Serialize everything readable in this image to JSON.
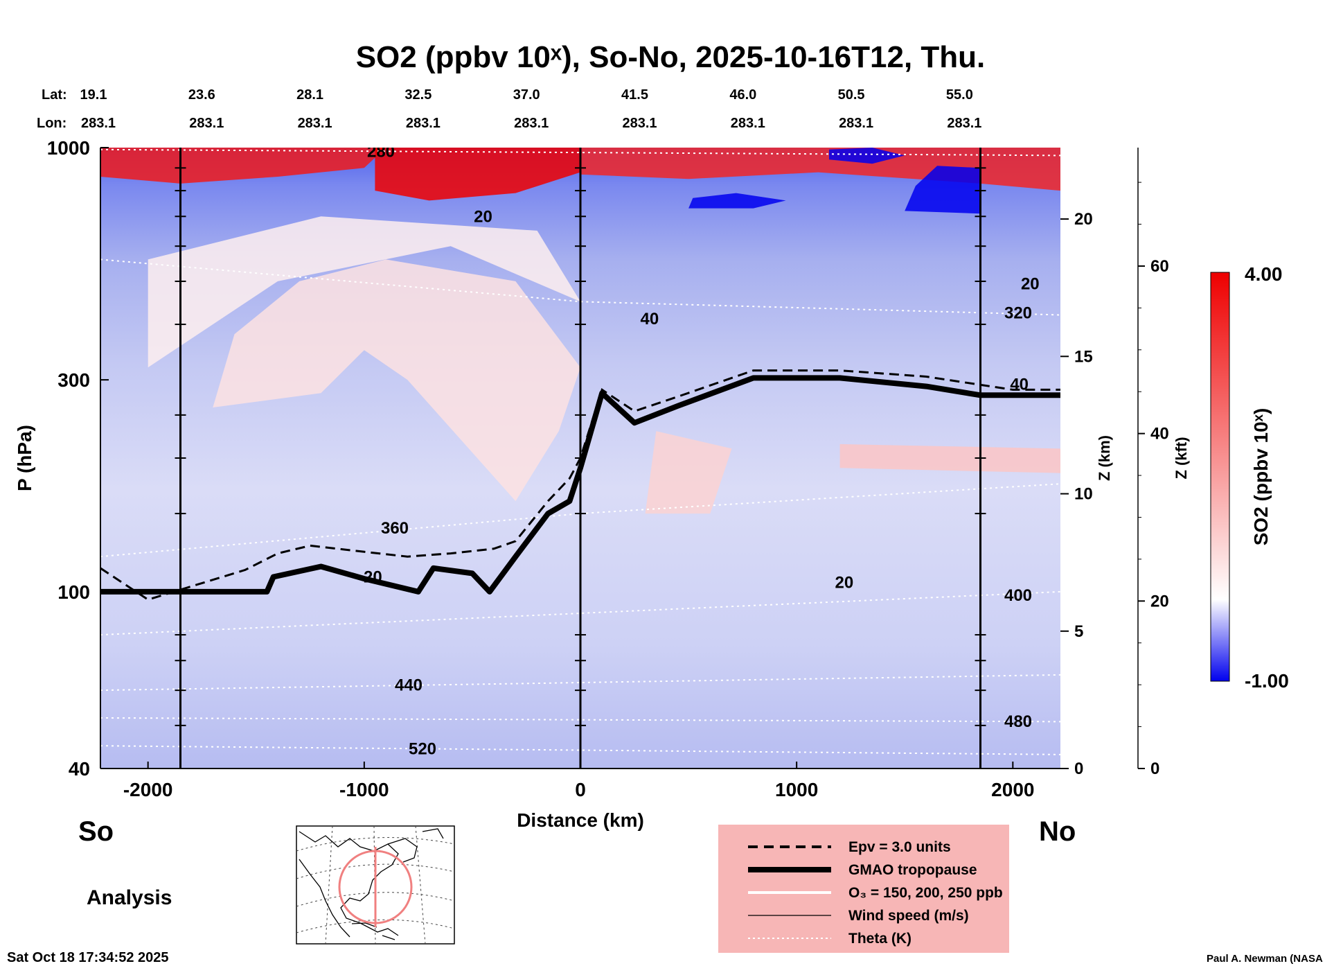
{
  "title": "SO2 (ppbv 10ˣ), So-No, 2025-10-16T12, Thu.",
  "header": {
    "lat_label": "Lat:",
    "lon_label": "Lon:",
    "lats": [
      "19.1",
      "23.6",
      "28.1",
      "32.5",
      "37.0",
      "41.5",
      "46.0",
      "50.5",
      "55.0"
    ],
    "lons": [
      "283.1",
      "283.1",
      "283.1",
      "283.1",
      "283.1",
      "283.1",
      "283.1",
      "283.1",
      "283.1"
    ]
  },
  "labels": {
    "direction_left": "So",
    "direction_right": "No",
    "analysis": "Analysis",
    "timestamp": "Sat Oct 18 17:34:52 2025",
    "credit": "Paul A. Newman (NASA"
  },
  "colorbar": {
    "label": "SO2 (ppbv 10ˣ)",
    "max_label": "4.00",
    "min_label": "-1.00",
    "max": 4.0,
    "min": -1.0,
    "colors": [
      "#0000ee",
      "#ffffff",
      "#ee0000"
    ]
  },
  "legend": {
    "items": [
      {
        "label": "Epv = 3.0 units",
        "style": "dashed"
      },
      {
        "label": "GMAO tropopause",
        "style": "thick"
      },
      {
        "label": "O₃ = 150, 200, 250 ppb",
        "style": "white"
      },
      {
        "label": "Wind speed (m/s)",
        "style": "thin"
      },
      {
        "label": "Theta (K)",
        "style": "dotted"
      }
    ]
  },
  "chart_data": {
    "type": "heatmap",
    "title": "SO2 (ppbv 10ˣ), So-No, 2025-10-16T12, Thu.",
    "xlabel": "Distance (km)",
    "ylabel": "P (hPa)",
    "y2label": "Z (km)",
    "y3label": "Z (kft)",
    "xlim": [
      -2220,
      2220
    ],
    "ylim": [
      1000,
      40
    ],
    "y_scale": "log",
    "x_ticks": [
      -2000,
      -1000,
      0,
      1000,
      2000
    ],
    "x_tick_labels": [
      "-2000",
      "-1000",
      "0",
      "1000",
      "2000"
    ],
    "y_ticks": [
      1000,
      300,
      100,
      40
    ],
    "y_tick_labels": [
      "1000",
      "300",
      "100",
      "40"
    ],
    "z_km_ticks": [
      0,
      5,
      10,
      15,
      20
    ],
    "z_km_tick_labels": [
      "0",
      "5",
      "10",
      "15",
      "20"
    ],
    "z_kft_ticks": [
      0,
      20,
      40,
      60
    ],
    "z_kft_tick_labels": [
      "0",
      "20",
      "40",
      "60"
    ],
    "z_max_km": 22.6,
    "vertical_lines_km": [
      -1850,
      0,
      1850
    ],
    "theta_contours": [
      {
        "label": "520",
        "points": [
          [
            -2220,
            45
          ],
          [
            2220,
            43
          ]
        ]
      },
      {
        "label": "480",
        "points": [
          [
            -2220,
            52
          ],
          [
            2220,
            51
          ]
        ]
      },
      {
        "label": "440",
        "points": [
          [
            -2220,
            60
          ],
          [
            2220,
            65
          ]
        ]
      },
      {
        "label": "400",
        "points": [
          [
            -2220,
            80
          ],
          [
            2220,
            100
          ]
        ]
      },
      {
        "label": "360",
        "points": [
          [
            -2220,
            120
          ],
          [
            0,
            150
          ],
          [
            2220,
            175
          ]
        ]
      },
      {
        "label": "320",
        "points": [
          [
            -2220,
            560
          ],
          [
            0,
            450
          ],
          [
            2220,
            420
          ]
        ]
      },
      {
        "label": "280",
        "points": [
          [
            -2220,
            990
          ],
          [
            2220,
            960
          ]
        ]
      }
    ],
    "tropopause": [
      [
        -2220,
        100
      ],
      [
        -1900,
        100
      ],
      [
        -1450,
        100
      ],
      [
        -1420,
        108
      ],
      [
        -1200,
        114
      ],
      [
        -1000,
        107
      ],
      [
        -750,
        100
      ],
      [
        -680,
        113
      ],
      [
        -500,
        110
      ],
      [
        -420,
        100
      ],
      [
        -300,
        120
      ],
      [
        -150,
        150
      ],
      [
        -50,
        160
      ],
      [
        0,
        190
      ],
      [
        100,
        280
      ],
      [
        250,
        240
      ],
      [
        450,
        262
      ],
      [
        800,
        303
      ],
      [
        1200,
        303
      ],
      [
        1600,
        290
      ],
      [
        1850,
        277
      ],
      [
        2220,
        277
      ]
    ],
    "epv_contour": [
      [
        -2220,
        113
      ],
      [
        -2000,
        96
      ],
      [
        -1550,
        112
      ],
      [
        -1400,
        122
      ],
      [
        -1250,
        127
      ],
      [
        -1000,
        123
      ],
      [
        -800,
        120
      ],
      [
        -600,
        122
      ],
      [
        -400,
        125
      ],
      [
        -300,
        130
      ],
      [
        -150,
        160
      ],
      [
        -50,
        180
      ],
      [
        0,
        200
      ],
      [
        100,
        285
      ],
      [
        250,
        255
      ],
      [
        450,
        275
      ],
      [
        800,
        315
      ],
      [
        1200,
        315
      ],
      [
        1600,
        305
      ],
      [
        2000,
        285
      ],
      [
        2220,
        285
      ]
    ],
    "wind_speed_labels": [
      {
        "label": "20",
        "x": -960,
        "p": 105
      },
      {
        "label": "20",
        "x": 1220,
        "p": 102
      },
      {
        "label": "40",
        "x": 320,
        "p": 400
      },
      {
        "label": "20",
        "x": -450,
        "p": 680
      },
      {
        "label": "20",
        "x": 2080,
        "p": 480
      },
      {
        "label": "40",
        "x": 2030,
        "p": 285
      }
    ],
    "so2_regions": [
      {
        "value": 3.6,
        "points": [
          [
            -2220,
            860
          ],
          [
            -1850,
            830
          ],
          [
            -1400,
            860
          ],
          [
            -1000,
            900
          ],
          [
            -900,
            1000
          ],
          [
            -2220,
            1000
          ]
        ]
      },
      {
        "value": 4.0,
        "points": [
          [
            -950,
            800
          ],
          [
            -700,
            760
          ],
          [
            -300,
            790
          ],
          [
            0,
            880
          ],
          [
            0,
            1000
          ],
          [
            -950,
            1000
          ]
        ]
      },
      {
        "value": 3.4,
        "points": [
          [
            0,
            870
          ],
          [
            500,
            850
          ],
          [
            1100,
            880
          ],
          [
            1850,
            830
          ],
          [
            2220,
            800
          ],
          [
            2220,
            1000
          ],
          [
            0,
            1000
          ]
        ]
      },
      {
        "value": -1.0,
        "points": [
          [
            1150,
            940
          ],
          [
            1350,
            920
          ],
          [
            1500,
            960
          ],
          [
            1350,
            1000
          ],
          [
            1150,
            990
          ]
        ]
      },
      {
        "value": -1.0,
        "points": [
          [
            1500,
            720
          ],
          [
            1850,
            710
          ],
          [
            1850,
            900
          ],
          [
            1650,
            910
          ],
          [
            1550,
            820
          ]
        ]
      },
      {
        "value": -1.0,
        "points": [
          [
            500,
            730
          ],
          [
            800,
            730
          ],
          [
            950,
            760
          ],
          [
            720,
            790
          ],
          [
            520,
            770
          ]
        ]
      },
      {
        "value": 0.45,
        "points": [
          [
            -1700,
            260
          ],
          [
            -1200,
            280
          ],
          [
            -1000,
            350
          ],
          [
            -800,
            300
          ],
          [
            -300,
            160
          ],
          [
            -100,
            230
          ],
          [
            0,
            320
          ],
          [
            -300,
            500
          ],
          [
            -900,
            560
          ],
          [
            -1300,
            500
          ],
          [
            -1600,
            380
          ]
        ]
      },
      {
        "value": 0.25,
        "points": [
          [
            -2000,
            320
          ],
          [
            -1400,
            500
          ],
          [
            -600,
            600
          ],
          [
            0,
            450
          ],
          [
            -200,
            650
          ],
          [
            -1200,
            700
          ],
          [
            -2000,
            560
          ]
        ]
      },
      {
        "value": 0.9,
        "points": [
          [
            1200,
            190
          ],
          [
            2220,
            185
          ],
          [
            2220,
            210
          ],
          [
            1200,
            215
          ]
        ]
      },
      {
        "value": 0.7,
        "points": [
          [
            300,
            150
          ],
          [
            600,
            150
          ],
          [
            700,
            210
          ],
          [
            350,
            230
          ]
        ]
      }
    ]
  }
}
